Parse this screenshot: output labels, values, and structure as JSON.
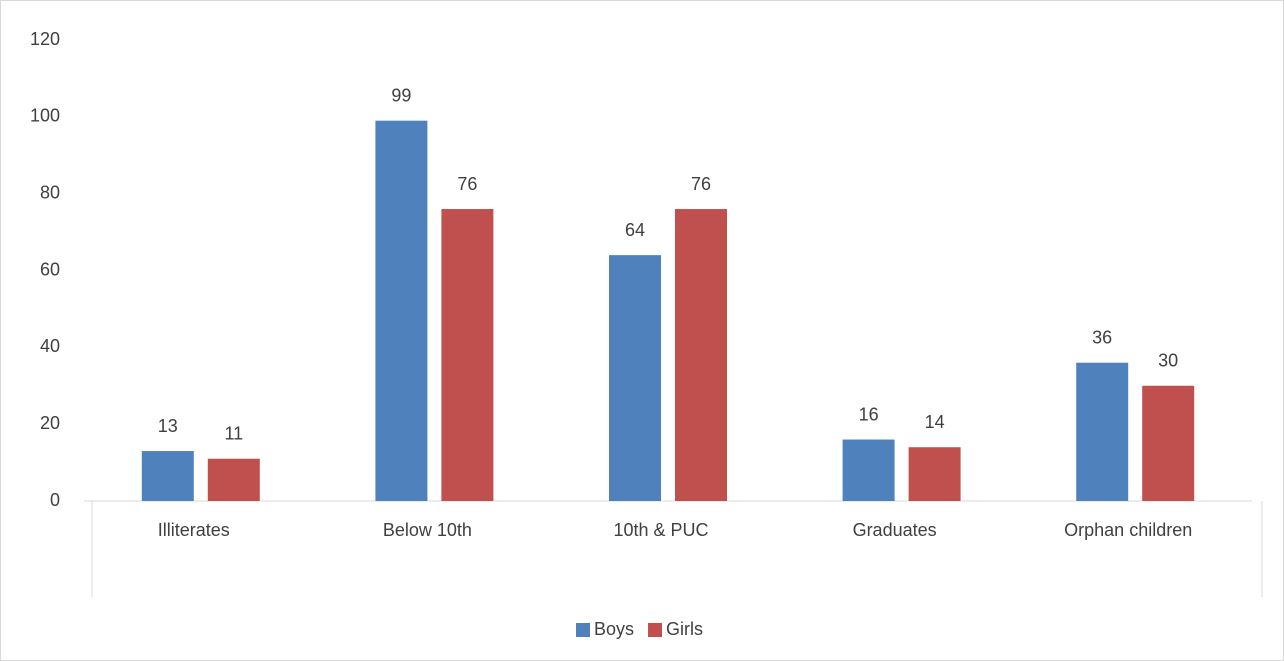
{
  "chart_data": {
    "type": "bar",
    "categories": [
      "Illiterates",
      "Below 10th",
      "10th & PUC",
      "Graduates",
      "Orphan children"
    ],
    "series": [
      {
        "name": "Boys",
        "color": "#4f81bd",
        "values": [
          13,
          99,
          64,
          16,
          36
        ]
      },
      {
        "name": "Girls",
        "color": "#c0504d",
        "values": [
          11,
          76,
          76,
          14,
          30
        ]
      }
    ],
    "ylim": [
      0,
      120
    ],
    "yticks": [
      0,
      20,
      40,
      60,
      80,
      100,
      120
    ],
    "grid": false,
    "legend": "bottom"
  }
}
